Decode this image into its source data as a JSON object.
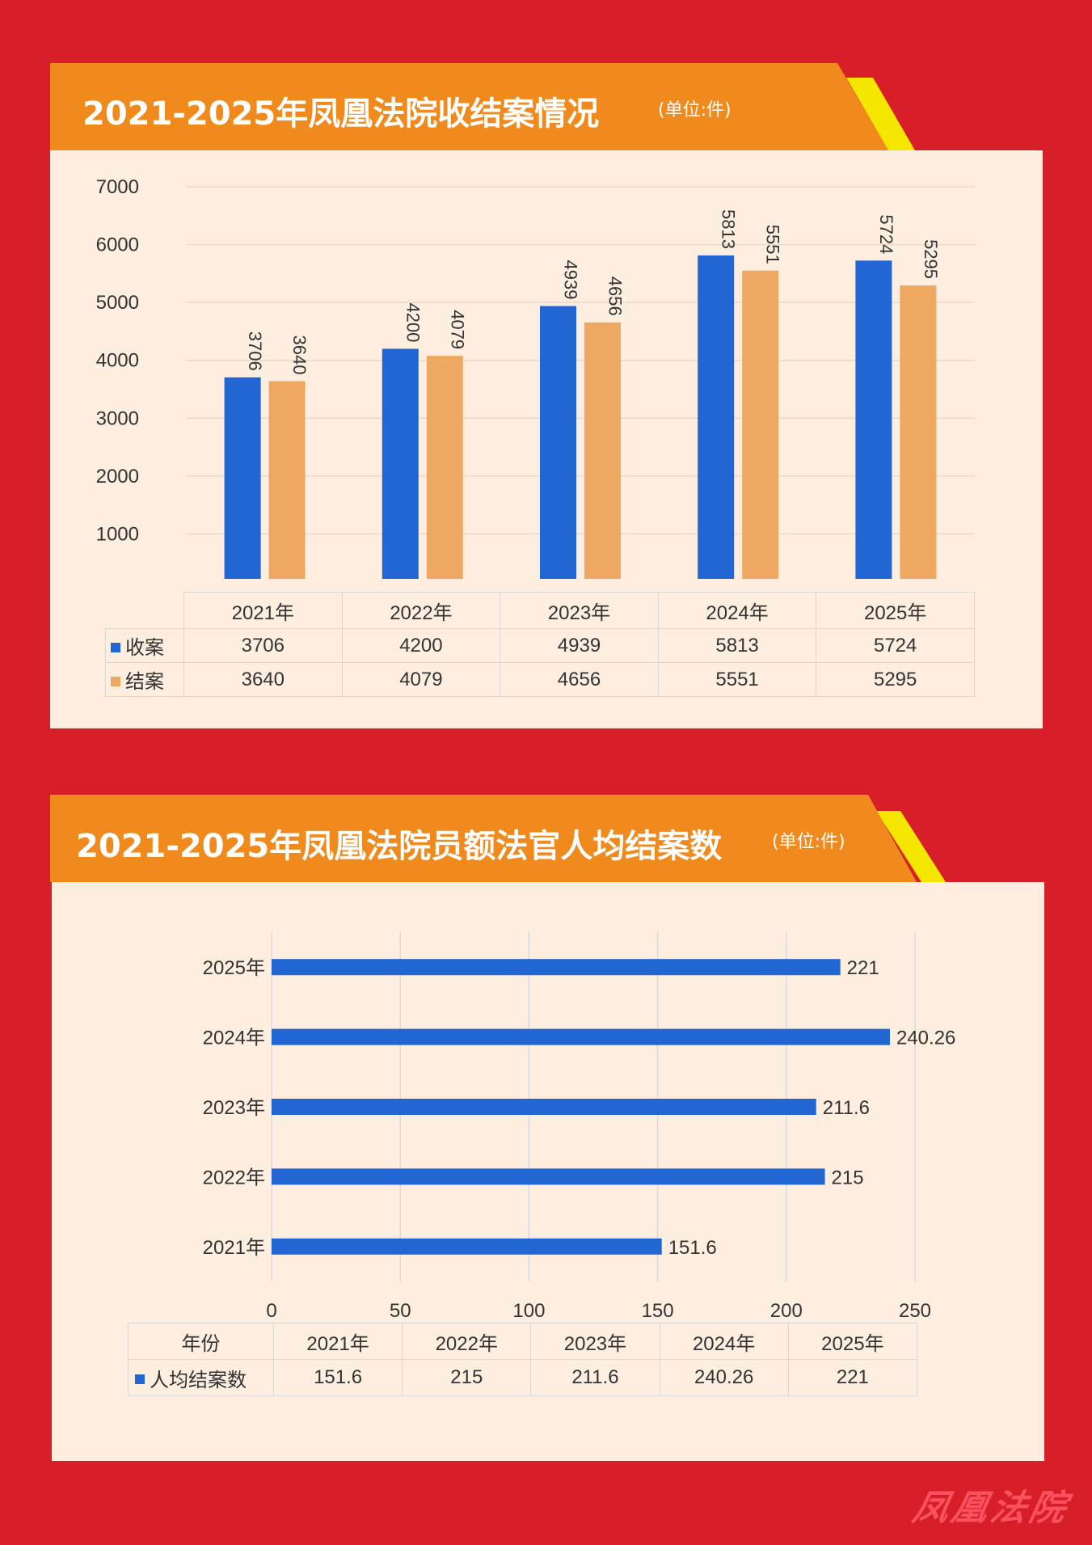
{
  "section1": {
    "title": "2021-2025年凤凰法院收结案情况",
    "unit": "(单位:件)",
    "table": {
      "rows": [
        {
          "label": "收案",
          "color": "#2166d2",
          "values": [
            "3706",
            "4200",
            "4939",
            "5813",
            "5724"
          ]
        },
        {
          "label": "结案",
          "color": "#efa862",
          "values": [
            "3640",
            "4079",
            "4656",
            "5551",
            "5295"
          ]
        }
      ]
    }
  },
  "section2": {
    "title": "2021-2025年凤凰法院员额法官人均结案数",
    "unit": "(单位:件)",
    "table": {
      "header_label": "年份",
      "row_label": "人均结案数",
      "row_color": "#2166d2",
      "years": [
        "2021年",
        "2022年",
        "2023年",
        "2024年",
        "2025年"
      ],
      "values": [
        "151.6",
        "215",
        "211.6",
        "240.26",
        "221"
      ]
    }
  },
  "watermark": "凤凰法院",
  "colors": {
    "background": "#d81e28",
    "banner": "#f08a1c",
    "accent": "#f5e600",
    "panel": "#fdeee0",
    "blue": "#2166d2",
    "orange_bar": "#efa862"
  },
  "chart_data": [
    {
      "type": "bar",
      "categories": [
        "2021年",
        "2022年",
        "2023年",
        "2024年",
        "2025年"
      ],
      "series": [
        {
          "name": "收案",
          "values": [
            3706,
            4200,
            4939,
            5813,
            5724
          ]
        },
        {
          "name": "结案",
          "values": [
            3640,
            4079,
            4656,
            5551,
            5295
          ]
        }
      ],
      "yticks": [
        0,
        1000,
        2000,
        3000,
        4000,
        5000,
        6000,
        7000
      ],
      "ylim": [
        0,
        7000
      ],
      "grid": true
    },
    {
      "type": "bar",
      "orientation": "horizontal",
      "categories": [
        "2021年",
        "2022年",
        "2023年",
        "2024年",
        "2025年"
      ],
      "series": [
        {
          "name": "人均结案数",
          "values": [
            151.6,
            215,
            211.6,
            240.26,
            221
          ]
        }
      ],
      "xticks": [
        0,
        50,
        100,
        150,
        200,
        250
      ],
      "xlim": [
        0,
        250
      ],
      "grid": true
    }
  ]
}
